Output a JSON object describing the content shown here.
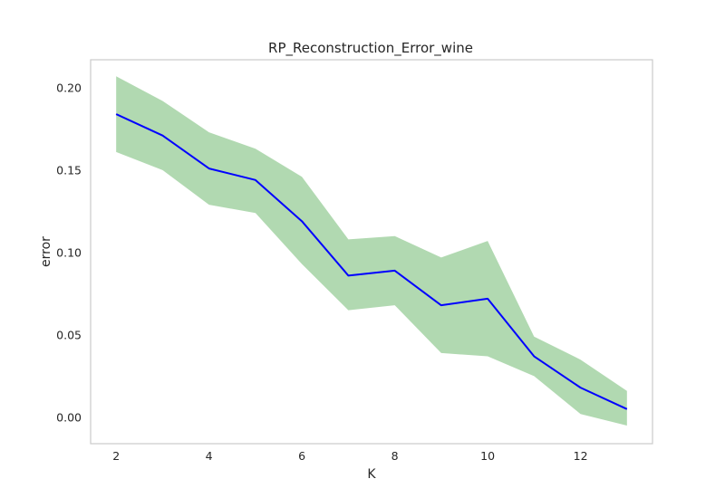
{
  "chart_data": {
    "type": "line",
    "title": "RP_Reconstruction_Error_wine",
    "xlabel": "K",
    "ylabel": "error",
    "xlim": [
      1.45,
      13.55
    ],
    "ylim": [
      -0.016,
      0.217
    ],
    "xticks": [
      2,
      4,
      6,
      8,
      10,
      12
    ],
    "xtick_labels": [
      "2",
      "4",
      "6",
      "8",
      "10",
      "12"
    ],
    "yticks": [
      0.0,
      0.05,
      0.1,
      0.15,
      0.2
    ],
    "ytick_labels": [
      "0.00",
      "0.05",
      "0.10",
      "0.15",
      "0.20"
    ],
    "grid": false,
    "x": [
      2,
      3,
      4,
      5,
      6,
      7,
      8,
      9,
      10,
      11,
      12,
      13
    ],
    "series": [
      {
        "values": [
          0.184,
          0.171,
          0.151,
          0.144,
          0.119,
          0.086,
          0.089,
          0.068,
          0.072,
          0.037,
          0.018,
          0.005
        ],
        "band_lower": [
          0.161,
          0.15,
          0.129,
          0.124,
          0.093,
          0.065,
          0.068,
          0.039,
          0.037,
          0.025,
          0.002,
          -0.005
        ],
        "band_upper": [
          0.207,
          0.192,
          0.173,
          0.163,
          0.146,
          0.108,
          0.11,
          0.097,
          0.107,
          0.049,
          0.035,
          0.016
        ],
        "line_color": "#0000ff",
        "band_color": "#b1d9b1"
      }
    ]
  }
}
